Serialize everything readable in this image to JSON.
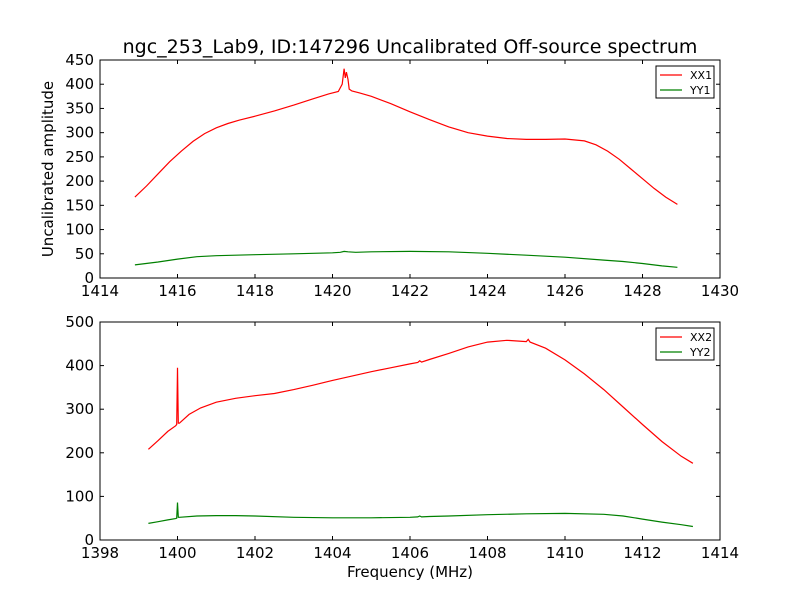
{
  "figure": {
    "title": "ngc_253_Lab9, ID:147296 Uncalibrated Off-source spectrum",
    "xlabel": "Frequency (MHz)",
    "ylabel": "Uncalibrated amplitude"
  },
  "chart_data": [
    {
      "type": "line",
      "title": "ngc_253_Lab9, ID:147296 Uncalibrated Off-source spectrum",
      "xlabel": "",
      "ylabel": "Uncalibrated amplitude",
      "xlim": [
        1414,
        1430
      ],
      "ylim": [
        0,
        450
      ],
      "xticks": [
        1414,
        1416,
        1418,
        1420,
        1422,
        1424,
        1426,
        1428,
        1430
      ],
      "yticks": [
        0,
        50,
        100,
        150,
        200,
        250,
        300,
        350,
        400,
        450
      ],
      "grid": false,
      "legend": "top-right",
      "series": [
        {
          "name": "XX1",
          "color": "#ff0000",
          "x": [
            1414.9,
            1415.2,
            1415.5,
            1415.8,
            1416.1,
            1416.4,
            1416.7,
            1417.0,
            1417.3,
            1417.6,
            1418.0,
            1418.5,
            1419.0,
            1419.5,
            1419.9,
            1420.15,
            1420.25,
            1420.3,
            1420.33,
            1420.36,
            1420.4,
            1420.43,
            1420.5,
            1420.7,
            1421.0,
            1421.5,
            1422.0,
            1422.5,
            1423.0,
            1423.5,
            1424.0,
            1424.5,
            1425.0,
            1425.5,
            1426.0,
            1426.5,
            1426.8,
            1427.1,
            1427.4,
            1427.7,
            1428.0,
            1428.3,
            1428.6,
            1428.9
          ],
          "y": [
            167,
            190,
            215,
            240,
            262,
            282,
            298,
            310,
            319,
            326,
            334,
            345,
            357,
            370,
            380,
            385,
            400,
            432,
            413,
            425,
            410,
            390,
            386,
            382,
            375,
            360,
            343,
            327,
            312,
            300,
            293,
            288,
            286,
            286,
            287,
            283,
            275,
            262,
            245,
            225,
            205,
            185,
            167,
            152
          ]
        },
        {
          "name": "YY1",
          "color": "#008000",
          "x": [
            1414.9,
            1415.5,
            1416.0,
            1416.5,
            1417.0,
            1418.0,
            1419.0,
            1420.0,
            1420.2,
            1420.3,
            1420.4,
            1420.6,
            1421.0,
            1422.0,
            1423.0,
            1424.0,
            1425.0,
            1426.0,
            1427.0,
            1427.5,
            1428.0,
            1428.5,
            1428.9
          ],
          "y": [
            27,
            33,
            39,
            44,
            46,
            48,
            50,
            52,
            53,
            55,
            54,
            53,
            54,
            55,
            54,
            51,
            47,
            43,
            37,
            34,
            30,
            25,
            22
          ]
        }
      ]
    },
    {
      "type": "line",
      "title": "",
      "xlabel": "Frequency (MHz)",
      "ylabel": "",
      "xlim": [
        1398,
        1414
      ],
      "ylim": [
        0,
        500
      ],
      "xticks": [
        1398,
        1400,
        1402,
        1404,
        1406,
        1408,
        1410,
        1412,
        1414
      ],
      "yticks": [
        0,
        100,
        200,
        300,
        400,
        500
      ],
      "grid": false,
      "legend": "top-right",
      "series": [
        {
          "name": "XX2",
          "color": "#ff0000",
          "x": [
            1399.25,
            1399.5,
            1399.75,
            1399.95,
            1399.98,
            1400.0,
            1400.02,
            1400.05,
            1400.3,
            1400.6,
            1401.0,
            1401.5,
            1402.0,
            1402.5,
            1403.0,
            1403.5,
            1404.0,
            1404.5,
            1405.0,
            1405.5,
            1406.0,
            1406.2,
            1406.25,
            1406.3,
            1406.5,
            1407.0,
            1407.5,
            1408.0,
            1408.5,
            1409.0,
            1409.05,
            1409.1,
            1409.5,
            1410.0,
            1410.5,
            1411.0,
            1411.5,
            1412.0,
            1412.5,
            1413.0,
            1413.3
          ],
          "y": [
            208,
            228,
            249,
            262,
            265,
            395,
            268,
            268,
            288,
            303,
            316,
            325,
            331,
            336,
            345,
            355,
            366,
            376,
            386,
            395,
            404,
            407,
            411,
            408,
            414,
            428,
            443,
            454,
            458,
            455,
            460,
            454,
            440,
            413,
            381,
            345,
            305,
            265,
            226,
            192,
            176
          ]
        },
        {
          "name": "YY2",
          "color": "#008000",
          "x": [
            1399.25,
            1399.5,
            1399.75,
            1399.95,
            1399.98,
            1400.0,
            1400.02,
            1400.05,
            1400.5,
            1401.0,
            1401.5,
            1402.0,
            1403.0,
            1404.0,
            1405.0,
            1406.0,
            1406.2,
            1406.25,
            1406.3,
            1406.5,
            1407.0,
            1408.0,
            1409.0,
            1410.0,
            1411.0,
            1411.5,
            1412.0,
            1412.5,
            1413.0,
            1413.3
          ],
          "y": [
            38,
            42,
            46,
            49,
            50,
            86,
            52,
            52,
            55,
            56,
            56,
            55,
            52,
            51,
            51,
            52,
            53,
            55,
            53,
            54,
            55,
            58,
            60,
            61,
            59,
            55,
            48,
            41,
            35,
            31
          ]
        }
      ]
    }
  ]
}
